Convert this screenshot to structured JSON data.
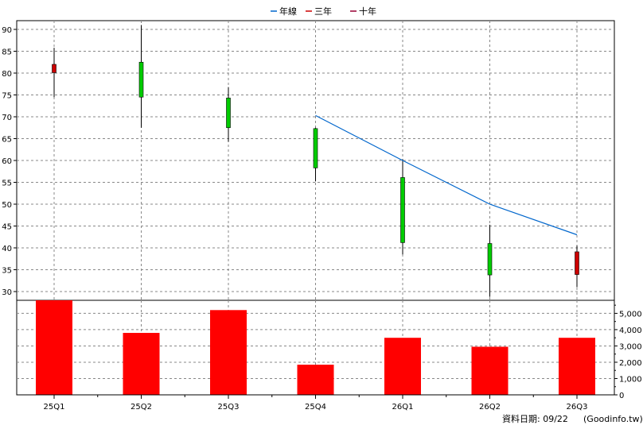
{
  "chart_data": {
    "type": "candlestick",
    "legend": [
      {
        "label": "年線",
        "color": "#0066cc"
      },
      {
        "label": "三年",
        "color": "#cc0000"
      },
      {
        "label": "十年",
        "color": "#990033"
      }
    ],
    "categories": [
      "25Q1",
      "25Q2",
      "25Q3",
      "25Q4",
      "26Q1",
      "26Q2",
      "26Q3"
    ],
    "price_axis": {
      "ticks": [
        30,
        35,
        40,
        45,
        50,
        55,
        60,
        65,
        70,
        75,
        80,
        85,
        90
      ],
      "range": [
        28,
        92
      ]
    },
    "volume_axis": {
      "ticks": [
        0,
        1000,
        2000,
        3000,
        4000,
        5000
      ],
      "tick_labels": [
        "0",
        "1,000",
        "2,000",
        "3,000",
        "4,000",
        "5,000"
      ],
      "range": [
        0,
        5800
      ]
    },
    "candles": [
      {
        "open": 80.1,
        "close": 82.0,
        "high": 85.8,
        "low": 74.5,
        "color": "#cc0000"
      },
      {
        "open": 82.5,
        "close": 74.5,
        "high": 91.0,
        "low": 67.5,
        "color": "#00cc00"
      },
      {
        "open": 74.3,
        "close": 67.5,
        "high": 76.8,
        "low": 64.3,
        "color": "#00cc00"
      },
      {
        "open": 67.3,
        "close": 58.3,
        "high": 67.5,
        "low": 55.2,
        "color": "#00cc00"
      },
      {
        "open": 56.1,
        "close": 41.2,
        "high": 60.3,
        "low": 38.5,
        "color": "#00cc00"
      },
      {
        "open": 41.0,
        "close": 33.8,
        "high": 45.3,
        "low": 28.8,
        "color": "#00cc00"
      },
      {
        "open": 33.9,
        "close": 39.1,
        "high": 40.5,
        "low": 31.0,
        "color": "#cc0000"
      }
    ],
    "volumes": [
      5800,
      3800,
      5200,
      1850,
      3500,
      2950,
      3500
    ],
    "volume_color": "#ff0000",
    "annual_line": {
      "name": "年線",
      "color": "#0066cc",
      "points": [
        [
          3,
          70.3
        ],
        [
          4,
          60.0
        ],
        [
          5,
          50.0
        ],
        [
          6,
          43.0
        ]
      ]
    },
    "grid": true,
    "legend_position": "top-center"
  },
  "footer": {
    "date_text": "資料日期: 09/22",
    "site_text": "(Goodinfo.tw)"
  }
}
